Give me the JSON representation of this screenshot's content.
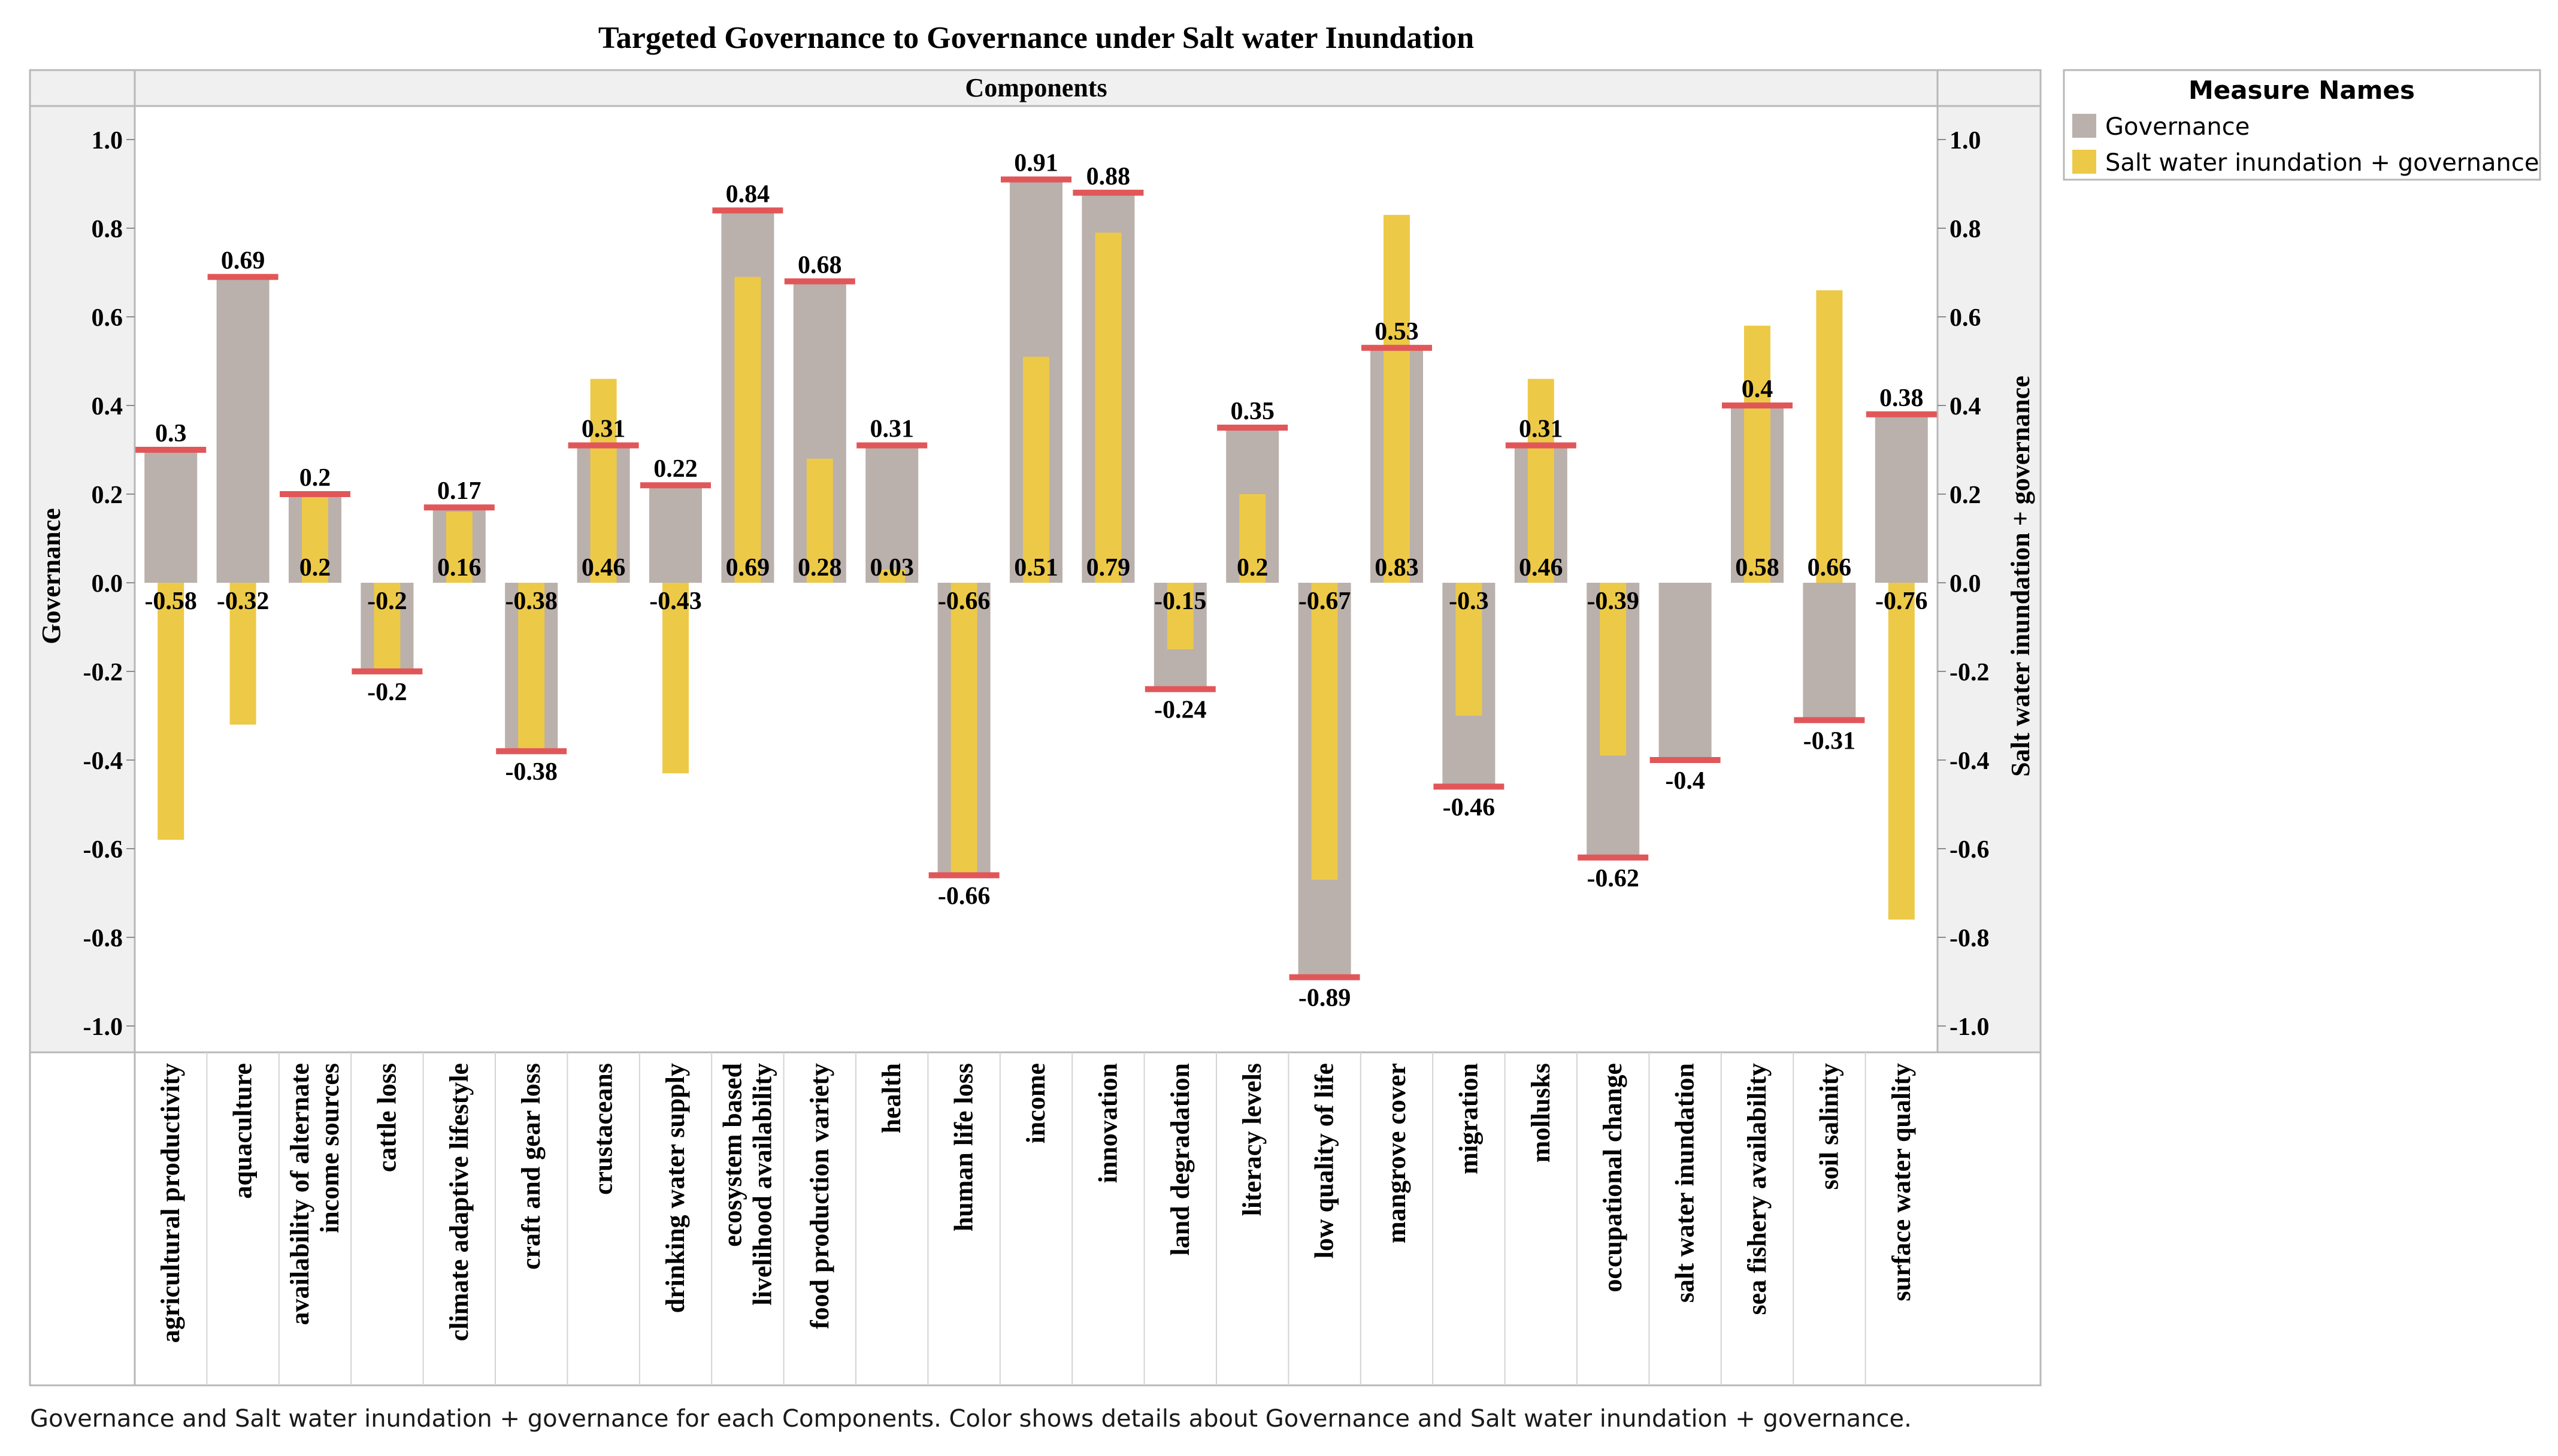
{
  "chart_data": {
    "type": "bar",
    "title": "Targeted Governance to Governance under Salt water Inundation",
    "header": "Components",
    "ylabel": "Governance",
    "ylabel_right": "Salt water inundation + governance",
    "ylim": [
      -1.0,
      1.0
    ],
    "yticks": [
      "1.0",
      "0.8",
      "0.6",
      "0.4",
      "0.2",
      "0.0",
      "-0.2",
      "-0.4",
      "-0.6",
      "-0.8",
      "-1.0"
    ],
    "ytick_values": [
      1.0,
      0.8,
      0.6,
      0.4,
      0.2,
      0.0,
      -0.2,
      -0.4,
      -0.6,
      -0.8,
      -1.0
    ],
    "legend": {
      "title": "Measure Names",
      "position": "top-right",
      "items": [
        {
          "name": "Governance",
          "color": "#bab0ac"
        },
        {
          "name": "Salt water inundation + governance",
          "color": "#edc948"
        }
      ]
    },
    "categories": [
      [
        "agricultural productivity"
      ],
      [
        "aquaculture"
      ],
      [
        "availability of alternate",
        "income sources"
      ],
      [
        "cattle loss"
      ],
      [
        "climate adaptive lifestyle"
      ],
      [
        "craft and gear loss"
      ],
      [
        "crustaceans"
      ],
      [
        "drinking water supply"
      ],
      [
        "ecosystem based",
        "livelihood availability"
      ],
      [
        "food production variety"
      ],
      [
        "health"
      ],
      [
        "human life loss"
      ],
      [
        "income"
      ],
      [
        "innovation"
      ],
      [
        "land degradation"
      ],
      [
        "literacy levels"
      ],
      [
        "low quality of life"
      ],
      [
        "mangrove cover"
      ],
      [
        "migration"
      ],
      [
        "mollusks"
      ],
      [
        "occupational change"
      ],
      [
        "salt water inundation"
      ],
      [
        "sea fishery availability"
      ],
      [
        "soil salinity"
      ],
      [
        "surface water quality"
      ]
    ],
    "series": [
      {
        "name": "Governance",
        "color": "#bab0ac",
        "values": [
          0.3,
          0.69,
          0.2,
          -0.2,
          0.17,
          -0.38,
          0.31,
          0.22,
          0.84,
          0.68,
          0.31,
          -0.66,
          0.91,
          0.88,
          -0.24,
          0.35,
          -0.89,
          0.53,
          -0.46,
          0.31,
          -0.62,
          -0.4,
          0.4,
          -0.31,
          0.38
        ],
        "labels": [
          "0.3",
          "0.69",
          "0.2",
          "-0.2",
          "0.17",
          "-0.38",
          "0.31",
          "0.22",
          "0.84",
          "0.68",
          "0.31",
          "-0.66",
          "0.91",
          "0.88",
          "-0.24",
          "0.35",
          "-0.89",
          "0.53",
          "-0.46",
          "0.31",
          "-0.62",
          "-0.4",
          "0.4",
          "-0.31",
          "0.38"
        ]
      },
      {
        "name": "Salt water inundation + governance",
        "color": "#edc948",
        "values": [
          -0.58,
          -0.32,
          0.2,
          -0.2,
          0.16,
          -0.38,
          0.46,
          -0.43,
          0.69,
          0.28,
          0.03,
          -0.66,
          0.51,
          0.79,
          -0.15,
          0.2,
          -0.67,
          0.83,
          -0.3,
          0.46,
          -0.39,
          null,
          0.58,
          0.66,
          -0.76
        ],
        "labels": [
          "-0.58",
          "-0.32",
          "0.2",
          "-0.2",
          "0.16",
          "-0.38",
          "0.46",
          "-0.43",
          "0.69",
          "0.28",
          "0.03",
          "-0.66",
          "0.51",
          "0.79",
          "-0.15",
          "0.2",
          "-0.67",
          "0.83",
          "-0.3",
          "0.46",
          "-0.39",
          null,
          "0.58",
          "0.66",
          "-0.76"
        ]
      }
    ],
    "reference_line_color": "#e15759",
    "caption": "Governance and Salt water inundation + governance for each Components.  Color shows details about Governance and Salt water inundation + governance."
  }
}
